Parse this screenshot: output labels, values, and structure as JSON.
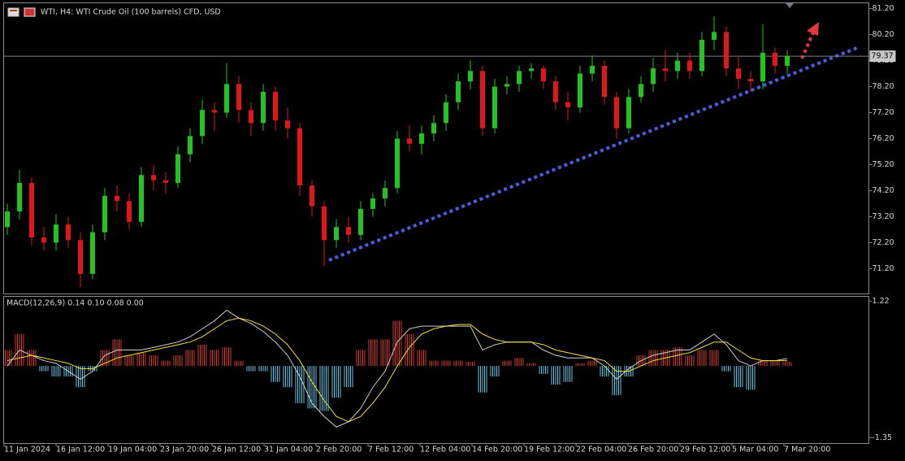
{
  "chart_data": [
    {
      "type": "candlestick",
      "title": "WTI, H4:  WTI Crude Oil (100 barrels) CFD, USD",
      "up_color": "#22c422",
      "down_color": "#e0161b",
      "open": [
        72.8,
        73.4,
        74.5,
        72.4,
        72.2,
        72.9,
        72.3,
        71.0,
        72.6,
        74.0,
        73.8,
        73.0,
        74.8,
        74.6,
        74.5,
        75.6,
        76.3,
        77.3,
        77.2,
        78.3,
        77.3,
        76.8,
        78.0,
        76.9,
        76.6,
        74.4,
        73.6,
        72.3,
        72.8,
        72.5,
        73.5,
        73.9,
        74.3,
        76.2,
        76.0,
        76.4,
        76.8,
        77.6,
        78.4,
        78.8,
        76.6,
        78.2,
        78.3,
        78.8,
        78.9,
        78.4,
        77.6,
        77.4,
        78.7,
        79.0,
        77.8,
        76.6,
        77.8,
        78.3,
        78.9,
        78.8,
        79.2,
        78.8,
        80.0,
        80.3,
        78.9,
        78.5,
        78.4,
        79.5,
        79.0
      ],
      "high": [
        73.7,
        75.0,
        74.7,
        72.8,
        73.3,
        73.2,
        72.6,
        72.9,
        74.3,
        74.4,
        74.1,
        75.1,
        75.2,
        74.9,
        75.9,
        76.6,
        77.7,
        77.6,
        79.1,
        78.6,
        77.6,
        78.3,
        78.2,
        77.4,
        76.8,
        74.6,
        73.8,
        73.1,
        73.2,
        73.8,
        74.1,
        74.6,
        76.5,
        76.7,
        76.7,
        77.1,
        77.9,
        78.7,
        79.2,
        79.0,
        78.5,
        78.6,
        79.0,
        79.1,
        79.0,
        78.6,
        78.0,
        79.0,
        79.4,
        79.2,
        78.0,
        78.1,
        78.6,
        79.3,
        79.6,
        79.5,
        79.5,
        80.3,
        80.9,
        80.5,
        79.4,
        78.8,
        80.6,
        79.7,
        79.6
      ],
      "low": [
        72.5,
        73.1,
        72.1,
        71.9,
        71.9,
        72.0,
        70.5,
        70.8,
        72.3,
        73.4,
        72.7,
        72.8,
        74.2,
        74.1,
        74.3,
        75.3,
        76.0,
        76.5,
        77.0,
        76.8,
        76.3,
        76.5,
        76.5,
        76.2,
        74.0,
        73.2,
        71.3,
        72.0,
        72.2,
        72.3,
        73.2,
        73.6,
        74.1,
        75.7,
        75.6,
        76.1,
        76.5,
        77.3,
        78.1,
        76.3,
        76.4,
        77.9,
        78.0,
        78.5,
        78.1,
        77.3,
        76.9,
        77.2,
        78.4,
        77.5,
        76.2,
        76.4,
        77.6,
        78.0,
        78.4,
        78.5,
        78.5,
        78.6,
        79.6,
        78.6,
        78.1,
        78.0,
        78.1,
        78.7,
        78.7
      ],
      "close": [
        73.4,
        74.5,
        72.4,
        72.2,
        72.9,
        72.3,
        71.0,
        72.6,
        74.0,
        73.8,
        73.0,
        74.8,
        74.6,
        74.5,
        75.6,
        76.3,
        77.3,
        77.2,
        78.3,
        77.3,
        76.8,
        78.0,
        76.9,
        76.6,
        74.4,
        73.6,
        72.3,
        72.8,
        72.5,
        73.5,
        73.9,
        74.3,
        76.2,
        76.0,
        76.4,
        76.8,
        77.6,
        78.4,
        78.8,
        76.6,
        78.2,
        78.3,
        78.8,
        78.9,
        78.4,
        77.6,
        77.4,
        78.7,
        79.0,
        77.8,
        76.6,
        77.8,
        78.3,
        78.9,
        78.8,
        79.2,
        78.8,
        80.0,
        80.3,
        78.9,
        78.5,
        78.4,
        79.5,
        79.0,
        79.37
      ],
      "current_price": 79.37,
      "ylim": [
        70.23,
        81.42
      ],
      "yticks": [
        {
          "value": 71.2,
          "label": "71.20"
        },
        {
          "value": 72.2,
          "label": "72.20"
        },
        {
          "value": 73.2,
          "label": "73.20"
        },
        {
          "value": 74.2,
          "label": "74.20"
        },
        {
          "value": 75.2,
          "label": "75.20"
        },
        {
          "value": 76.2,
          "label": "76.20"
        },
        {
          "value": 77.2,
          "label": "77.20"
        },
        {
          "value": 78.2,
          "label": "78.20"
        },
        {
          "value": 79.2,
          "label": "79.20"
        },
        {
          "value": 80.2,
          "label": "80.20"
        },
        {
          "value": 81.2,
          "label": "81.20"
        }
      ],
      "x_labels": [
        "11 Jan 2024",
        "16 Jan 12:00",
        "19 Jan 04:00",
        "23 Jan 20:00",
        "26 Jan 12:00",
        "31 Jan 04:00",
        "2 Feb 20:00",
        "7 Feb 12:00",
        "12 Feb 04:00",
        "14 Feb 20:00",
        "19 Feb 12:00",
        "22 Feb 04:00",
        "26 Feb 20:00",
        "29 Feb 12:00",
        "5 Mar 04:00",
        "7 Mar 20:00"
      ]
    },
    {
      "type": "macd",
      "title": "MACD(12,26,9) 0.14 0.10 0.08 0.00",
      "positive_color": "#d9382c",
      "negative_color": "#5bc8e8",
      "macd_color": "#d0d0d0",
      "signal_color": "#f0e040",
      "histogram": [
        0.3,
        0.6,
        0.3,
        -0.1,
        -0.2,
        -0.2,
        -0.4,
        -0.1,
        0.3,
        0.5,
        0.2,
        0.25,
        0.2,
        0.1,
        0.2,
        0.3,
        0.4,
        0.3,
        0.35,
        0.1,
        -0.1,
        -0.1,
        -0.3,
        -0.4,
        -0.7,
        -0.8,
        -0.85,
        -0.6,
        -0.4,
        0.3,
        0.5,
        0.5,
        0.85,
        0.6,
        0.3,
        0.1,
        0.1,
        0.1,
        0.08,
        -0.5,
        -0.2,
        0.1,
        0.15,
        0.05,
        -0.15,
        -0.35,
        -0.3,
        0.05,
        0.1,
        -0.2,
        -0.55,
        -0.2,
        0.2,
        0.3,
        0.3,
        0.35,
        0.2,
        0.3,
        0.3,
        -0.1,
        -0.4,
        -0.45,
        0.1,
        0.1,
        0.08
      ],
      "macd": [
        0.0,
        0.3,
        0.2,
        0.1,
        0.05,
        -0.1,
        -0.25,
        -0.1,
        0.2,
        0.3,
        0.3,
        0.3,
        0.35,
        0.4,
        0.45,
        0.55,
        0.7,
        0.85,
        1.05,
        0.9,
        0.8,
        0.65,
        0.45,
        0.2,
        -0.2,
        -0.7,
        -0.95,
        -1.15,
        -1.05,
        -0.8,
        -0.4,
        -0.1,
        0.45,
        0.7,
        0.75,
        0.75,
        0.75,
        0.75,
        0.75,
        0.3,
        0.4,
        0.45,
        0.45,
        0.45,
        0.3,
        0.2,
        0.15,
        0.15,
        0.15,
        0.0,
        -0.25,
        -0.05,
        0.1,
        0.2,
        0.25,
        0.3,
        0.3,
        0.45,
        0.6,
        0.4,
        0.1,
        0.0,
        0.1,
        0.1,
        0.14
      ],
      "signal": [
        0.1,
        0.15,
        0.2,
        0.15,
        0.1,
        0.05,
        -0.05,
        -0.05,
        0.05,
        0.15,
        0.2,
        0.25,
        0.3,
        0.35,
        0.4,
        0.45,
        0.55,
        0.7,
        0.85,
        0.9,
        0.85,
        0.75,
        0.6,
        0.4,
        0.1,
        -0.3,
        -0.65,
        -0.95,
        -1.05,
        -0.95,
        -0.7,
        -0.4,
        0.0,
        0.35,
        0.6,
        0.7,
        0.75,
        0.78,
        0.78,
        0.6,
        0.5,
        0.45,
        0.45,
        0.45,
        0.4,
        0.3,
        0.25,
        0.2,
        0.15,
        0.1,
        -0.1,
        -0.1,
        0.0,
        0.1,
        0.15,
        0.2,
        0.25,
        0.35,
        0.45,
        0.45,
        0.3,
        0.15,
        0.1,
        0.1,
        0.1
      ],
      "ylim": [
        -1.46,
        1.31
      ],
      "yticks": [
        1.22,
        -1.35
      ]
    }
  ]
}
